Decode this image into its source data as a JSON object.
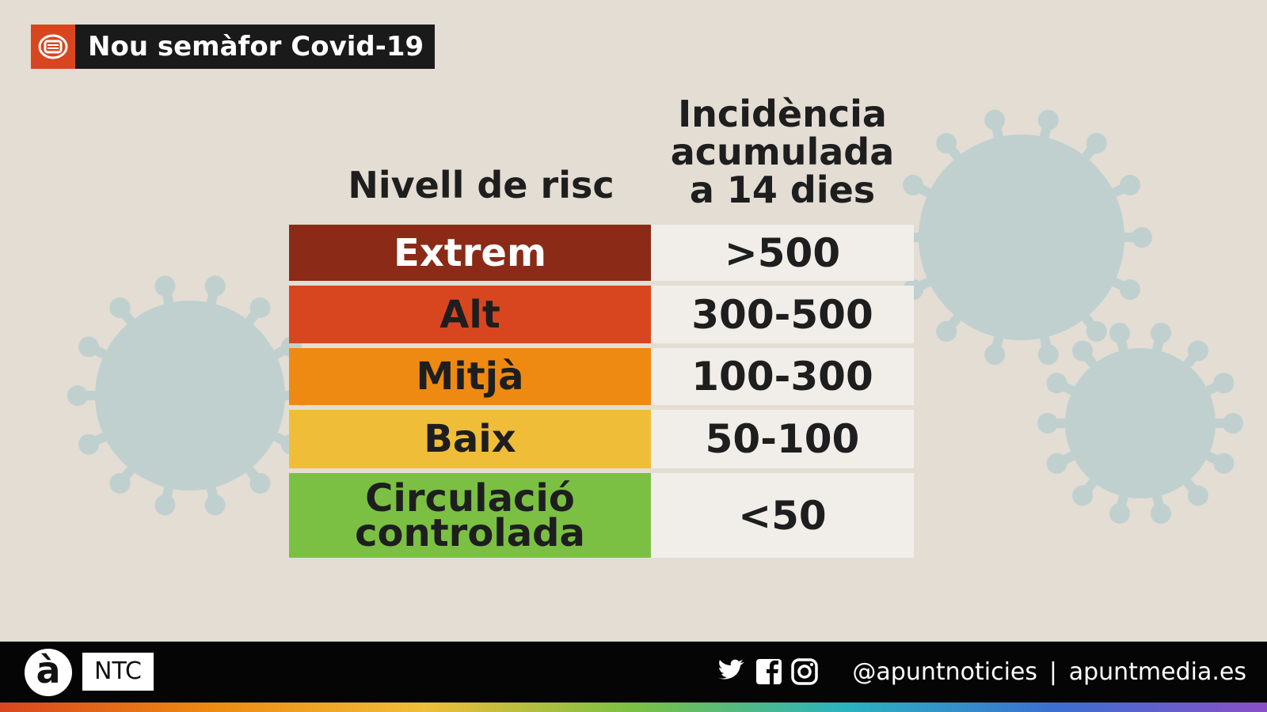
{
  "header": {
    "title": "Nou semàfor Covid-19"
  },
  "table": {
    "headers": [
      "Nivell de risc",
      "Incidència\nacumulada\na 14 dies"
    ],
    "rows": [
      {
        "level": "Extrem",
        "range": ">500",
        "color": "#8b2a16",
        "text_color": "#ffffff"
      },
      {
        "level": "Alt",
        "range": "300-500",
        "color": "#d8461f",
        "text_color": "#1e1e1e"
      },
      {
        "level": "Mitjà",
        "range": "100-300",
        "color": "#ee8a12",
        "text_color": "#1e1e1e"
      },
      {
        "level": "Baix",
        "range": "50-100",
        "color": "#f0bd39",
        "text_color": "#1e1e1e"
      },
      {
        "level": "Circulació\ncontrolada",
        "range": "<50",
        "color": "#7bc043",
        "text_color": "#1e1e1e"
      }
    ]
  },
  "footer": {
    "logo": "à",
    "brand": "NTC",
    "handle": "@apuntnoticies",
    "site": "apuntmedia.es"
  }
}
